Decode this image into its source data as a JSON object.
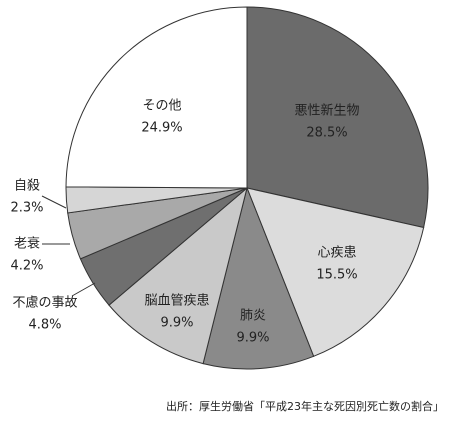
{
  "chart_data": {
    "type": "pie",
    "categories": [
      "悪性新生物",
      "心疾患",
      "肺炎",
      "脳血管疾患",
      "不慮の事故",
      "老衰",
      "自殺",
      "その他"
    ],
    "values": [
      28.5,
      15.5,
      9.9,
      9.9,
      4.8,
      4.2,
      2.3,
      24.9
    ],
    "value_labels": [
      "28.5%",
      "15.5%",
      "9.9%",
      "9.9%",
      "4.8%",
      "4.2%",
      "2.3%",
      "24.9%"
    ],
    "colors": [
      "#6b6b6b",
      "#dcdcdc",
      "#8a8a8a",
      "#c9c9c9",
      "#6f6f6f",
      "#a9a9a9",
      "#d6d6d6",
      "#ffffff"
    ],
    "source": "出所：厚生労働省「平成23年主な死因別死亡数の割合」"
  }
}
